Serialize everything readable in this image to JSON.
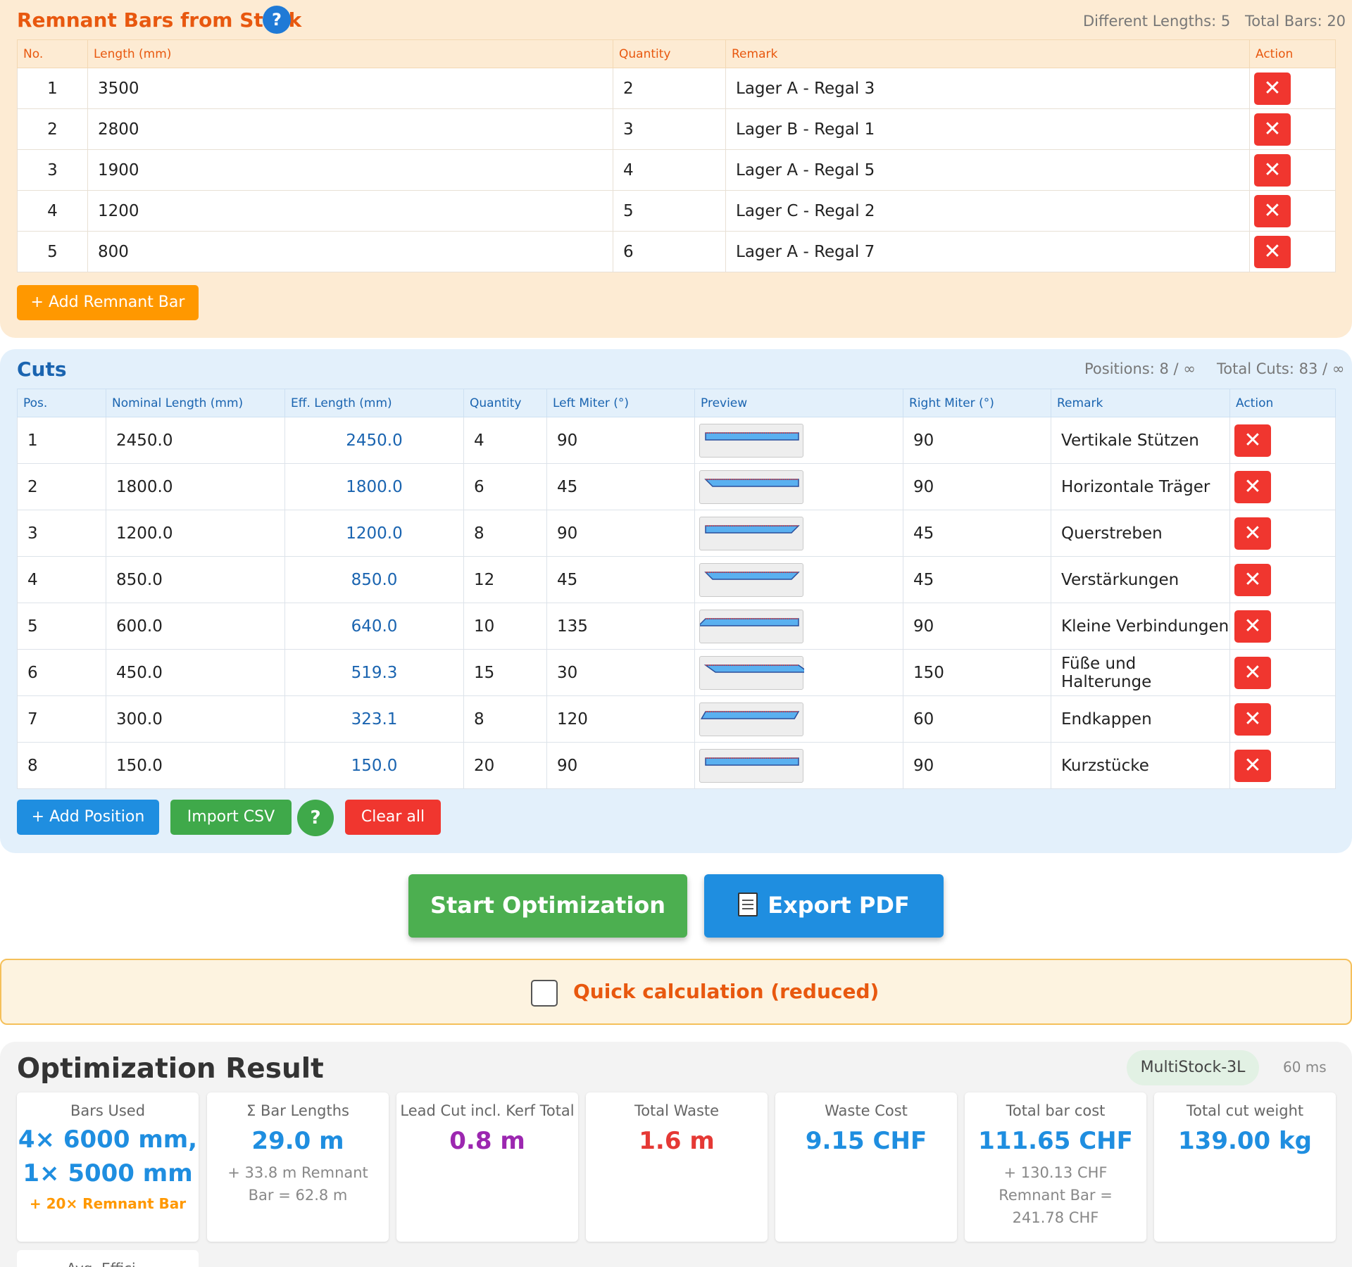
{
  "remnant": {
    "title": "Remnant Bars from Stock",
    "help": "?",
    "stat_lengths": "Different Lengths: 5",
    "stat_total": "Total Bars: 20",
    "headers": [
      "No.",
      "Length (mm)",
      "Quantity",
      "Remark",
      "Action"
    ],
    "rows": [
      {
        "no": "1",
        "length": "3500",
        "qty": "2",
        "remark": "Lager A - Regal 3"
      },
      {
        "no": "2",
        "length": "2800",
        "qty": "3",
        "remark": "Lager B - Regal 1"
      },
      {
        "no": "3",
        "length": "1900",
        "qty": "4",
        "remark": "Lager A - Regal 5"
      },
      {
        "no": "4",
        "length": "1200",
        "qty": "5",
        "remark": "Lager C - Regal 2"
      },
      {
        "no": "5",
        "length": "800",
        "qty": "6",
        "remark": "Lager A - Regal 7"
      }
    ],
    "delete_glyph": "✕",
    "add_label": "+ Add Remnant Bar"
  },
  "cuts": {
    "title": "Cuts",
    "stat_positions": "Positions: 8 / ∞",
    "stat_total": "Total Cuts: 83 / ∞",
    "headers": [
      "Pos.",
      "Nominal Length (mm)",
      "Eff. Length (mm)",
      "Quantity",
      "Left Miter (°)",
      "Preview",
      "Right Miter (°)",
      "Remark",
      "Action"
    ],
    "rows": [
      {
        "pos": "1",
        "nominal": "2450.0",
        "eff": "2450.0",
        "qty": "4",
        "left": "90",
        "right": "90",
        "remark": "Vertikale Stützen"
      },
      {
        "pos": "2",
        "nominal": "1800.0",
        "eff": "1800.0",
        "qty": "6",
        "left": "45",
        "right": "90",
        "remark": "Horizontale Träger"
      },
      {
        "pos": "3",
        "nominal": "1200.0",
        "eff": "1200.0",
        "qty": "8",
        "left": "90",
        "right": "45",
        "remark": "Querstreben"
      },
      {
        "pos": "4",
        "nominal": "850.0",
        "eff": "850.0",
        "qty": "12",
        "left": "45",
        "right": "45",
        "remark": "Verstärkungen"
      },
      {
        "pos": "5",
        "nominal": "600.0",
        "eff": "640.0",
        "qty": "10",
        "left": "135",
        "right": "90",
        "remark": "Kleine Verbindungen"
      },
      {
        "pos": "6",
        "nominal": "450.0",
        "eff": "519.3",
        "qty": "15",
        "left": "30",
        "right": "150",
        "remark": "Füße und Halterunge"
      },
      {
        "pos": "7",
        "nominal": "300.0",
        "eff": "323.1",
        "qty": "8",
        "left": "120",
        "right": "60",
        "remark": "Endkappen"
      },
      {
        "pos": "8",
        "nominal": "150.0",
        "eff": "150.0",
        "qty": "20",
        "left": "90",
        "right": "90",
        "remark": "Kurzstücke"
      }
    ],
    "add_label": "+ Add Position",
    "import_label": "Import CSV",
    "help": "?",
    "clear_label": "Clear all"
  },
  "actions": {
    "start_label": "Start Optimization",
    "export_label": "Export PDF",
    "export_icon": "document-icon"
  },
  "quick": {
    "label": "Quick calculation (reduced)",
    "checked": false
  },
  "result": {
    "title": "Optimization Result",
    "algorithm": "MultiStock-3L",
    "time": "60 ms",
    "cards": {
      "bars": {
        "label": "Bars Used",
        "value1": "4× 6000 mm,",
        "value2": "1× 5000 mm",
        "sub": "+ 20× Remnant Bar"
      },
      "lengths": {
        "label": "Σ Bar Lengths",
        "value": "29.0 m",
        "sub1": "+ 33.8 m Remnant",
        "sub2": "Bar = 62.8 m"
      },
      "lead": {
        "label": "Lead Cut incl. Kerf Total",
        "value": "0.8 m"
      },
      "waste": {
        "label": "Total Waste",
        "value": "1.6 m"
      },
      "wastecost": {
        "label": "Waste Cost",
        "value": "9.15 CHF"
      },
      "barcost": {
        "label": "Total bar cost",
        "value": "111.65 CHF",
        "sub1": "+ 130.13 CHF",
        "sub2": "Remnant Bar =",
        "sub3": "241.78 CHF"
      },
      "weight": {
        "label": "Total cut weight",
        "value": "139.00 kg"
      }
    },
    "partial_label": "Avg. Effici..."
  },
  "colors": {
    "orange_accent": "#e8580f",
    "blue_accent": "#1a64b0",
    "value_blue": "#1f8ee0",
    "value_purple": "#9c27b0",
    "value_red": "#e53935",
    "delete_red": "#f0362f",
    "green": "#3fa94a"
  }
}
